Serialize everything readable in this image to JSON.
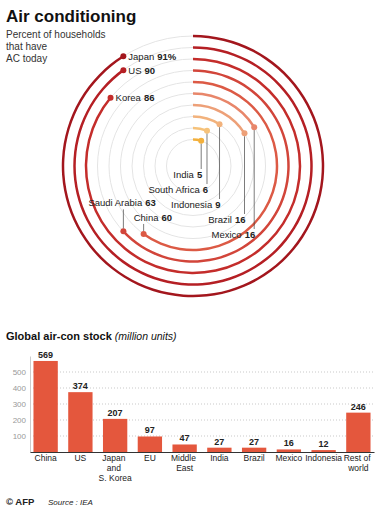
{
  "chart_data": [
    {
      "type": "radial_bar",
      "title": "Air conditioning",
      "subtitle": "Percent of households that have AC today",
      "categories": [
        "Japan",
        "US",
        "Korea",
        "Saudi Arabia",
        "China",
        "Mexico",
        "Brazil",
        "Indonesia",
        "South Africa",
        "India"
      ],
      "values": [
        91,
        90,
        86,
        63,
        60,
        16,
        16,
        9,
        6,
        5
      ],
      "value_labels": [
        "91%",
        "90",
        "86",
        "63",
        "60",
        "16",
        "16",
        "9",
        "6",
        "5"
      ],
      "colors": [
        "#a3161d",
        "#b51f24",
        "#c42d2b",
        "#d2453a",
        "#dc5a45",
        "#e8866a",
        "#eda078",
        "#f2b27c",
        "#f6c27a",
        "#f3b03c"
      ],
      "ylim": [
        0,
        100
      ],
      "grid": true,
      "data_labels": true,
      "tick_labels": false
    },
    {
      "type": "bar",
      "title": "Global air-con stock",
      "subtitle": "(million units)",
      "categories": [
        "China",
        "US",
        "Japan and S. Korea",
        "EU",
        "Middle East",
        "India",
        "Brazil",
        "Mexico",
        "Indonesia",
        "Rest of world"
      ],
      "values": [
        569,
        374,
        207,
        97,
        47,
        27,
        27,
        16,
        12,
        246
      ],
      "color": "#e4573d",
      "ylim": [
        0,
        600
      ],
      "yticks": [
        100,
        200,
        300,
        400,
        500
      ],
      "grid": true,
      "data_labels": true,
      "annotations": [
        "© AFP",
        "Source : IEA"
      ]
    }
  ]
}
